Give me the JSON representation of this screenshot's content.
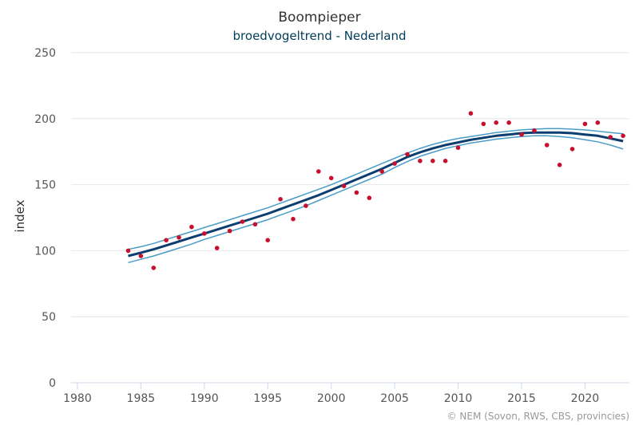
{
  "chart_data": {
    "type": "line",
    "title": "Boompieper",
    "subtitle": "broedvogeltrend - Nederland",
    "ylabel": "index",
    "xlabel": "",
    "xlim": [
      1979.5,
      2023.5
    ],
    "ylim": [
      0,
      250
    ],
    "x_ticks": [
      "1980",
      "1985",
      "1990",
      "1995",
      "2000",
      "2005",
      "2010",
      "2015",
      "2020"
    ],
    "y_ticks": [
      "0",
      "50",
      "100",
      "150",
      "200",
      "250"
    ],
    "grid": true,
    "credits": "© NEM (Sovon, RWS, CBS, provincies)",
    "colors": {
      "trend": "#0b3d6e",
      "band": "#4a9cc7",
      "points": "#c8102e"
    },
    "points": {
      "x": [
        1984,
        1985,
        1986,
        1987,
        1988,
        1989,
        1990,
        1991,
        1992,
        1993,
        1994,
        1995,
        1996,
        1997,
        1998,
        1999,
        2000,
        2001,
        2002,
        2003,
        2004,
        2005,
        2006,
        2007,
        2008,
        2009,
        2010,
        2011,
        2012,
        2013,
        2014,
        2015,
        2016,
        2017,
        2018,
        2019,
        2020,
        2021,
        2022,
        2023
      ],
      "y": [
        100,
        96,
        87,
        108,
        110,
        118,
        113,
        102,
        115,
        122,
        120,
        108,
        139,
        124,
        134,
        160,
        155,
        149,
        144,
        140,
        160,
        166,
        173,
        168,
        168,
        168,
        178,
        204,
        196,
        197,
        197,
        188,
        191,
        180,
        165,
        177,
        196,
        197,
        186,
        187
      ]
    },
    "trend": {
      "x": [
        1984,
        1985,
        1986,
        1987,
        1988,
        1989,
        1990,
        1991,
        1992,
        1993,
        1994,
        1995,
        1996,
        1997,
        1998,
        1999,
        2000,
        2001,
        2002,
        2003,
        2004,
        2005,
        2006,
        2007,
        2008,
        2009,
        2010,
        2011,
        2012,
        2013,
        2014,
        2015,
        2016,
        2017,
        2018,
        2019,
        2020,
        2021,
        2022,
        2023
      ],
      "y": [
        96,
        98.5,
        101,
        104,
        107,
        110,
        113,
        116,
        119,
        122,
        125,
        128,
        131.5,
        135,
        138.5,
        142,
        146,
        150,
        154,
        158,
        162,
        166.5,
        171,
        174.5,
        177.5,
        180,
        182,
        184,
        185.5,
        187,
        188,
        189,
        189.5,
        189.5,
        189.5,
        189,
        188,
        187,
        185,
        183
      ],
      "lower": [
        91,
        93.5,
        96,
        99,
        102,
        105,
        108.5,
        111.5,
        114.5,
        117.5,
        120.5,
        123.5,
        127,
        130.5,
        134,
        138,
        142,
        146,
        150,
        154,
        158,
        163,
        167.5,
        171.5,
        174.5,
        177.5,
        179.5,
        181.5,
        183,
        184.5,
        185.5,
        186.5,
        187,
        187,
        186.5,
        185.5,
        184,
        182.5,
        180,
        177
      ],
      "upper": [
        101,
        103,
        105.5,
        108.5,
        111.5,
        114.5,
        117.5,
        120.5,
        123.5,
        126.5,
        129.5,
        132.5,
        136,
        139.5,
        143,
        146.5,
        150,
        154,
        158,
        162,
        166,
        170,
        174,
        177.5,
        180.5,
        183,
        185,
        186.5,
        188,
        189.5,
        190.5,
        191.5,
        192,
        192.5,
        192.5,
        192,
        191.5,
        190.5,
        189.5,
        188.5
      ]
    }
  }
}
